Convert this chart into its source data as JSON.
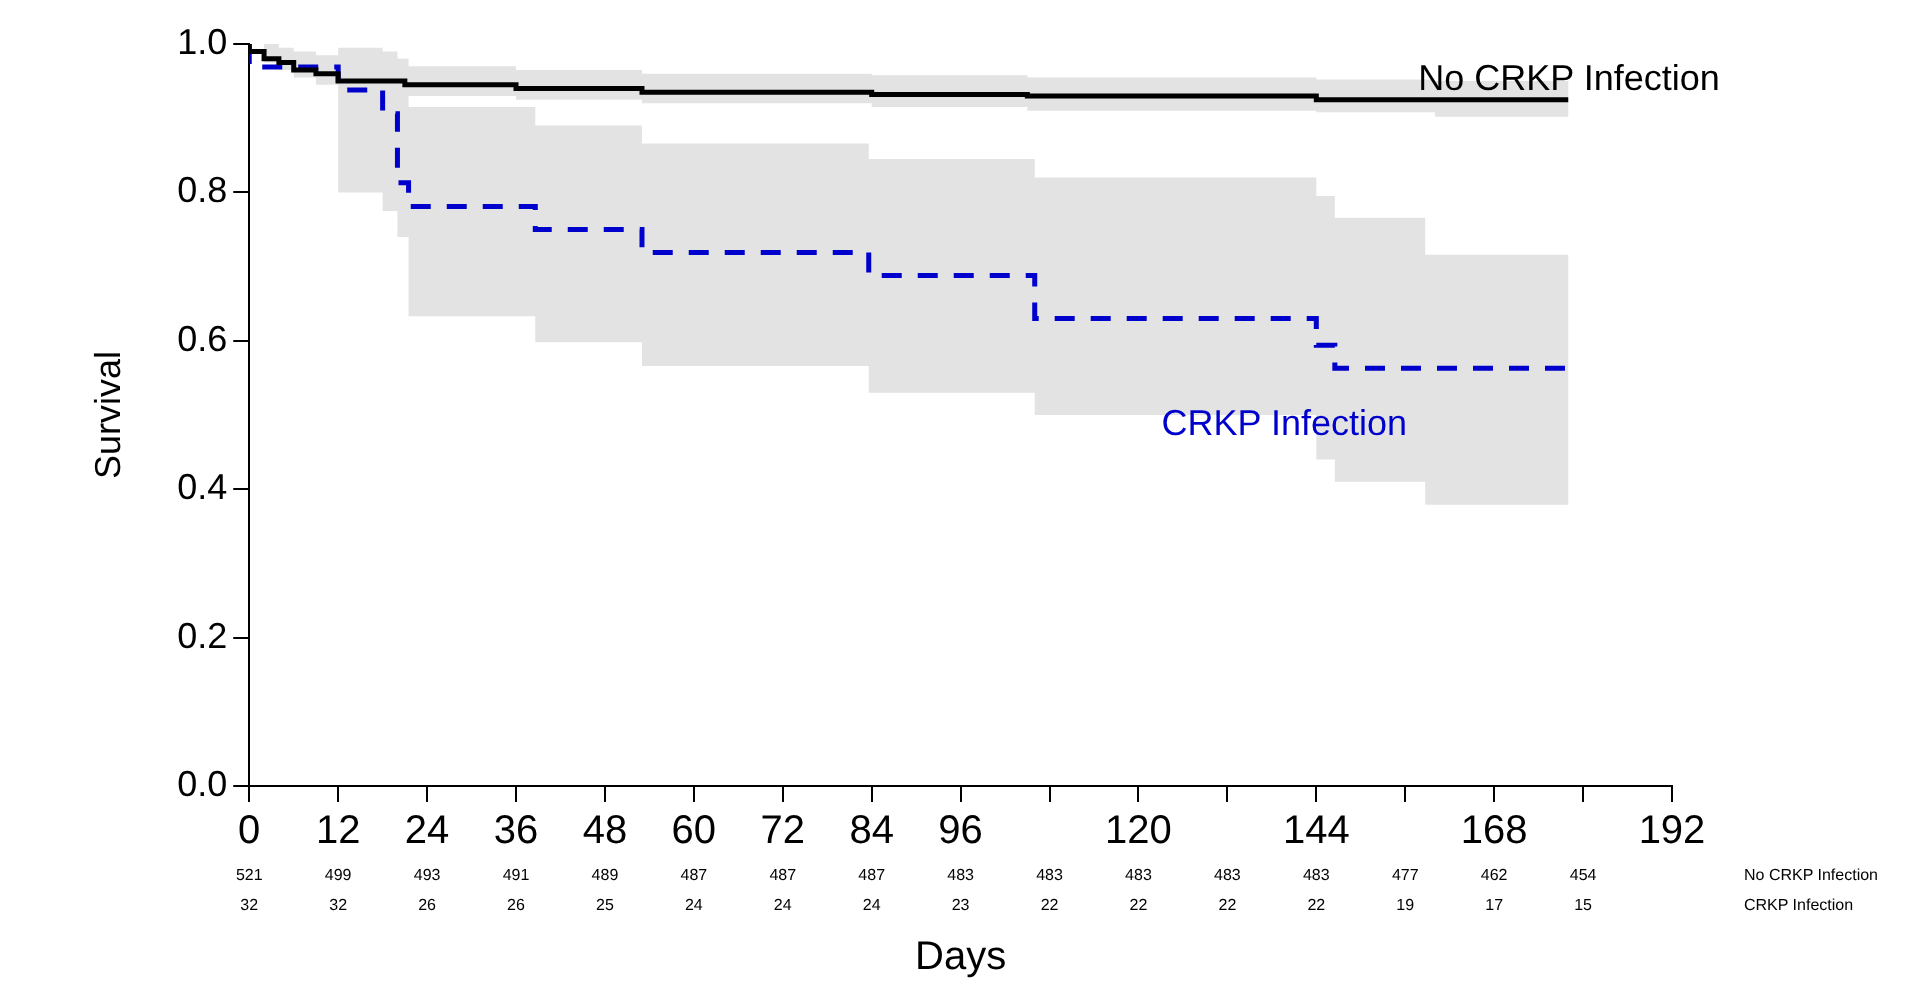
{
  "chart_data": {
    "type": "step",
    "xlabel": "Days",
    "ylabel": "Survival",
    "xlim": [
      0,
      192
    ],
    "xticks": [
      0,
      12,
      24,
      36,
      48,
      60,
      72,
      84,
      96,
      {
        "value": 108,
        "label": null
      },
      120,
      {
        "value": 132,
        "label": null
      },
      144,
      {
        "value": 156,
        "label": null
      },
      168,
      {
        "value": 180,
        "label": null
      },
      192
    ],
    "ylim": [
      0,
      1
    ],
    "yticks": [
      {
        "value": 0,
        "label": "0.0"
      },
      0.2,
      0.4,
      0.6,
      0.8,
      {
        "value": 1,
        "label": "1.0"
      }
    ],
    "grid": false,
    "legend": false,
    "marker": "none",
    "series": [
      {
        "name": "No CRKP Infection",
        "color": "#000000",
        "line_style": "solid",
        "x": [
          0,
          2,
          4,
          6,
          9,
          12,
          21,
          36,
          53,
          84,
          105,
          144,
          160,
          178
        ],
        "values": [
          1,
          0.99,
          0.98,
          0.975,
          0.965,
          0.96,
          0.95,
          0.945,
          0.94,
          0.935,
          0.932,
          0.93,
          0.925,
          0.925
        ],
        "upper": [
          1,
          1,
          0.995,
          0.99,
          0.985,
          0.98,
          0.97,
          0.965,
          0.96,
          0.958,
          0.955,
          0.952,
          0.95,
          0.95
        ],
        "lower": [
          1,
          0.975,
          0.965,
          0.955,
          0.945,
          0.94,
          0.93,
          0.925,
          0.92,
          0.915,
          0.91,
          0.908,
          0.902,
          0.902
        ]
      },
      {
        "name": "CRKP Infection",
        "color": "#0000cc",
        "line_style": "dashed",
        "x": [
          0,
          12,
          18,
          20,
          21.5,
          38.6,
          53,
          83.6,
          106,
          144,
          146.5,
          158.7,
          178
        ],
        "values": [
          1,
          0.969,
          0.938,
          0.906,
          0.813,
          0.781,
          0.75,
          0.719,
          0.688,
          0.63,
          0.594,
          0.563,
          0.563
        ],
        "upper": [
          1,
          0.995,
          0.99,
          0.98,
          0.915,
          0.89,
          0.866,
          0.845,
          0.82,
          0.795,
          0.766,
          0.716,
          0.716
        ],
        "lower": [
          1,
          0.8,
          0.775,
          0.74,
          0.633,
          0.598,
          0.566,
          0.53,
          0.5,
          0.44,
          0.41,
          0.379,
          0.379
        ]
      }
    ],
    "annotations": [
      "No CRKP Infection",
      "521",
      "499",
      "493",
      "491",
      "489",
      "487",
      "487",
      "487",
      "483",
      "483",
      "483",
      "483",
      "483",
      "477",
      "462",
      "454",
      "CRKP Infection",
      "32",
      "32",
      "26",
      "26",
      "25",
      "24",
      "24",
      "24",
      "23",
      "22",
      "22",
      "22",
      "22",
      "19",
      "17",
      "15"
    ]
  }
}
